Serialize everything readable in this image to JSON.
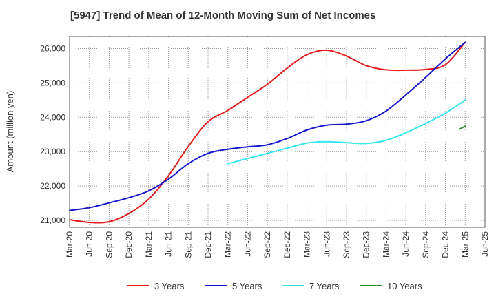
{
  "chart_data": {
    "type": "line",
    "title": "[5947]  Trend of Mean of 12-Month Moving Sum of Net Incomes",
    "xlabel": "",
    "ylabel": "Amount (million yen)",
    "ylim": [
      20800,
      26350
    ],
    "yticks": [
      21000,
      22000,
      23000,
      24000,
      25000,
      26000
    ],
    "ytick_labels": [
      "21,000",
      "22,000",
      "23,000",
      "24,000",
      "25,000",
      "26,000"
    ],
    "x_categories": [
      "Mar-20",
      "Jun-20",
      "Sep-20",
      "Dec-20",
      "Mar-21",
      "Jun-21",
      "Sep-21",
      "Dec-21",
      "Mar-22",
      "Jun-22",
      "Sep-22",
      "Dec-22",
      "Mar-23",
      "Jun-23",
      "Sep-23",
      "Dec-23",
      "Mar-24",
      "Jun-24",
      "Sep-24",
      "Dec-24",
      "Mar-25",
      "Jun-25"
    ],
    "grid": true,
    "legend_position": "bottom",
    "series": [
      {
        "name": "3 Years",
        "color": "#e31a1c",
        "points": [
          [
            0,
            21020
          ],
          [
            1,
            20940
          ],
          [
            2,
            20960
          ],
          [
            3,
            21200
          ],
          [
            4,
            21620
          ],
          [
            5,
            22300
          ],
          [
            6,
            23150
          ],
          [
            7,
            23870
          ],
          [
            8,
            24200
          ],
          [
            9,
            24580
          ],
          [
            10,
            24960
          ],
          [
            11,
            25430
          ],
          [
            12,
            25820
          ],
          [
            13,
            25950
          ],
          [
            14,
            25780
          ],
          [
            15,
            25500
          ],
          [
            16,
            25380
          ],
          [
            17,
            25370
          ],
          [
            18,
            25390
          ],
          [
            19,
            25530
          ],
          [
            20,
            26180
          ]
        ]
      },
      {
        "name": "5 Years",
        "color": "#1515cc",
        "points": [
          [
            0,
            21290
          ],
          [
            1,
            21370
          ],
          [
            2,
            21510
          ],
          [
            3,
            21660
          ],
          [
            4,
            21860
          ],
          [
            5,
            22200
          ],
          [
            6,
            22650
          ],
          [
            7,
            22950
          ],
          [
            8,
            23070
          ],
          [
            9,
            23140
          ],
          [
            10,
            23200
          ],
          [
            11,
            23380
          ],
          [
            12,
            23630
          ],
          [
            13,
            23770
          ],
          [
            14,
            23800
          ],
          [
            15,
            23900
          ],
          [
            16,
            24180
          ],
          [
            17,
            24650
          ],
          [
            18,
            25160
          ],
          [
            19,
            25700
          ],
          [
            20,
            26180
          ]
        ]
      },
      {
        "name": "7 Years",
        "color": "#33e5ee",
        "points": [
          [
            8,
            22650
          ],
          [
            9,
            22800
          ],
          [
            10,
            22950
          ],
          [
            11,
            23100
          ],
          [
            12,
            23250
          ],
          [
            13,
            23290
          ],
          [
            14,
            23260
          ],
          [
            15,
            23240
          ],
          [
            16,
            23330
          ],
          [
            17,
            23550
          ],
          [
            18,
            23820
          ],
          [
            19,
            24120
          ],
          [
            20,
            24500
          ]
        ]
      },
      {
        "name": "10 Years",
        "color": "#2a8a2a",
        "points": [
          [
            19.7,
            23650
          ],
          [
            20,
            23740
          ]
        ]
      }
    ]
  }
}
